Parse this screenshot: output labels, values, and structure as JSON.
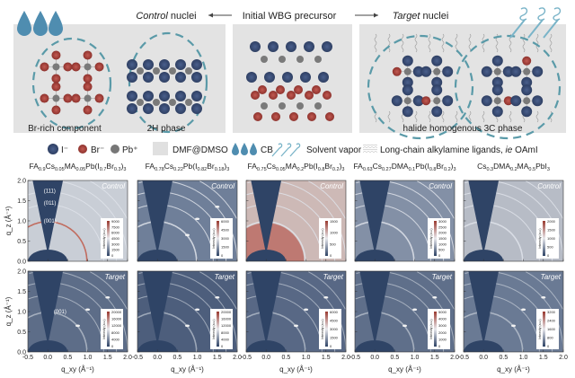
{
  "schematic": {
    "control_label_italic": "Control",
    "control_label_rest": " nuclei",
    "center_label": "Initial WBG precursor",
    "target_label_italic": "Target",
    "target_label_rest": " nuclei",
    "left_panel": {
      "label_1": "Br-rich component",
      "label_2": "2H phase"
    },
    "right_panel": {
      "label": "halide homogenous 3C phase"
    }
  },
  "legend": {
    "iodide": "I⁻",
    "bromide": "Br⁻",
    "lead": "Pb⁺",
    "dmf_dmso": "DMF@DMSO",
    "cb": "CB",
    "solvent_vapor": "Solvent vapor",
    "ligands_prefix": "Long-chain alkylamine ligands, ",
    "ligands_ie": "ie",
    "ligands_suffix": " OAmI"
  },
  "colors": {
    "iodide": "#3b4f7a",
    "bromide": "#a8403a",
    "lead": "#7a7a7a",
    "panel_bg": "#e3e3e3",
    "dashed_circle": "#5a9aa8",
    "drop": "#4f8db0",
    "mask": "#2f4466"
  },
  "chart_data": {
    "type": "heatmap",
    "xlabel": "q_xy (Å⁻¹)",
    "ylabel": "q_z (Å⁻¹)",
    "xlim": [
      -0.5,
      2.0
    ],
    "ylim": [
      0.0,
      2.0
    ],
    "xticks": [
      "-0.5",
      "0.0",
      "0.5",
      "1.0",
      "1.5",
      "2.0"
    ],
    "yticks": [
      "0.0",
      "0.5",
      "1.0",
      "1.5",
      "2.0"
    ],
    "colorbar_label": "Intensity (a.u.)",
    "columns": [
      {
        "formula": [
          [
            "FA",
            ""
          ],
          [
            "0.9",
            "s"
          ],
          [
            "Cs",
            ""
          ],
          [
            "0.05",
            "s"
          ],
          [
            "MA",
            ""
          ],
          [
            "0.05",
            "s"
          ],
          [
            "Pb(I",
            ""
          ],
          [
            "0.7",
            "s"
          ],
          [
            "Br",
            ""
          ],
          [
            "0.3",
            "s"
          ],
          [
            ")",
            ""
          ],
          [
            "3",
            "s"
          ]
        ],
        "control": {
          "tag": "Control",
          "colorbar_ticks": [
            "9000",
            "7500",
            "6000",
            "4500",
            "3000",
            "1500",
            "0"
          ],
          "bg": "#c9ced6",
          "annotations": [
            "(111)",
            "(011)",
            "(001)"
          ]
        },
        "target": {
          "tag": "Target",
          "colorbar_ticks": [
            "20000",
            "16000",
            "12000",
            "8000",
            "4000",
            "0"
          ],
          "bg": "#5d6d88",
          "annotations": [
            "(001)"
          ]
        }
      },
      {
        "formula": [
          [
            "FA",
            ""
          ],
          [
            "0.78",
            "s"
          ],
          [
            "Cs",
            ""
          ],
          [
            "0.22",
            "s"
          ],
          [
            "Pb(I",
            ""
          ],
          [
            "0.82",
            "s"
          ],
          [
            "Br",
            ""
          ],
          [
            "0.18",
            "s"
          ],
          [
            ")",
            ""
          ],
          [
            "3",
            "s"
          ]
        ],
        "control": {
          "tag": "Control",
          "colorbar_ticks": [
            "6000",
            "4500",
            "3000",
            "1500",
            "0"
          ],
          "bg": "#6f7f99",
          "annotations": []
        },
        "target": {
          "tag": "Target",
          "colorbar_ticks": [
            "20000",
            "16000",
            "12000",
            "8000",
            "4000",
            "0"
          ],
          "bg": "#4d5e7c",
          "annotations": []
        }
      },
      {
        "formula": [
          [
            "FA",
            ""
          ],
          [
            "0.75",
            "s"
          ],
          [
            "Cs",
            ""
          ],
          [
            "0.05",
            "s"
          ],
          [
            "MA",
            ""
          ],
          [
            "0.2",
            "s"
          ],
          [
            "Pb(I",
            ""
          ],
          [
            "0.8",
            "s"
          ],
          [
            "Br",
            ""
          ],
          [
            "0.2",
            "s"
          ],
          [
            ")",
            ""
          ],
          [
            "3",
            "s"
          ]
        ],
        "control": {
          "tag": "Control",
          "colorbar_ticks": [
            "1500",
            "1000",
            "500",
            "0"
          ],
          "bg": "#cdb9b6",
          "annotations": []
        },
        "target": {
          "tag": "Target",
          "colorbar_ticks": [
            "6000",
            "4500",
            "3000",
            "1500",
            "0"
          ],
          "bg": "#586885",
          "annotations": []
        }
      },
      {
        "formula": [
          [
            "FA",
            ""
          ],
          [
            "0.63",
            "s"
          ],
          [
            "Cs",
            ""
          ],
          [
            "0.27",
            "s"
          ],
          [
            "DMA",
            ""
          ],
          [
            "0.1",
            "s"
          ],
          [
            "Pb(I",
            ""
          ],
          [
            "0.8",
            "s"
          ],
          [
            "Br",
            ""
          ],
          [
            "0.2",
            "s"
          ],
          [
            ")",
            ""
          ],
          [
            "3",
            "s"
          ]
        ],
        "control": {
          "tag": "Control",
          "colorbar_ticks": [
            "3000",
            "2500",
            "2000",
            "1500",
            "1000",
            "500",
            "0"
          ],
          "bg": "#8390a6",
          "annotations": []
        },
        "target": {
          "tag": "Target",
          "colorbar_ticks": [
            "5000",
            "4000",
            "3000",
            "2000",
            "1000",
            "0"
          ],
          "bg": "#5f6f8a",
          "annotations": []
        }
      },
      {
        "formula": [
          [
            "Cs",
            ""
          ],
          [
            "0.3",
            "s"
          ],
          [
            "DMA",
            ""
          ],
          [
            "0.2",
            "s"
          ],
          [
            "MA",
            ""
          ],
          [
            "0.5",
            "s"
          ],
          [
            "PbI",
            ""
          ],
          [
            "3",
            "s"
          ]
        ],
        "control": {
          "tag": "Control",
          "colorbar_ticks": [
            "2000",
            "1500",
            "1000",
            "500",
            "0"
          ],
          "bg": "#b7bcc6",
          "annotations": []
        },
        "target": {
          "tag": "Target",
          "colorbar_ticks": [
            "3200",
            "2400",
            "1600",
            "800",
            "0"
          ],
          "bg": "#6a7a94",
          "annotations": []
        }
      }
    ]
  }
}
